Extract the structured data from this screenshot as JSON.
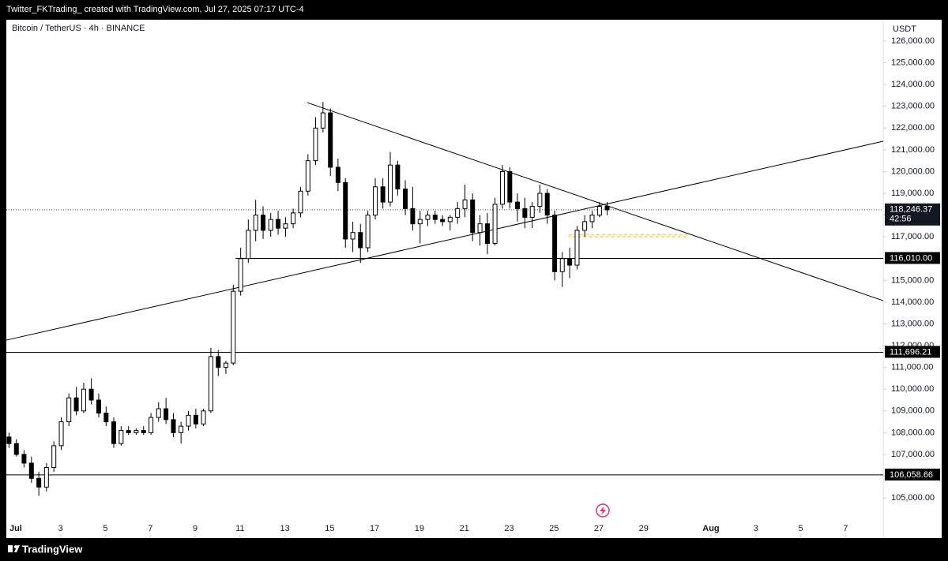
{
  "header": "Twitter_FKTrading_ created with TradingView.com, Jul 27, 2025 07:17 UTC-4",
  "footer": "TradingView",
  "chart_data": {
    "type": "candlestick",
    "title": "Bitcoin / TetherUS · 4h · BINANCE",
    "y_unit": "USDT",
    "x": [
      -0.3,
      0.03,
      0.37,
      0.7,
      1.03,
      1.37,
      1.7,
      2.03,
      2.37,
      2.7,
      3.03,
      3.37,
      3.7,
      4.03,
      4.37,
      4.7,
      5.03,
      5.37,
      5.7,
      6.03,
      6.37,
      6.7,
      7.03,
      7.37,
      7.7,
      8.03,
      8.37,
      8.7,
      9.03,
      9.37,
      9.7,
      10.03,
      10.37,
      10.7,
      11.03,
      11.37,
      11.7,
      12.03,
      12.37,
      12.7,
      13.03,
      13.37,
      13.7,
      14.03,
      14.37,
      14.7,
      15.03,
      15.37,
      15.7,
      16.03,
      16.37,
      16.7,
      17.03,
      17.37,
      17.7,
      18.03,
      18.37,
      18.7,
      19.03,
      19.37,
      19.7,
      20.03,
      20.37,
      20.7,
      21.03,
      21.37,
      21.7,
      22.03,
      22.37,
      22.7,
      23.03,
      23.37,
      23.7,
      24.03,
      24.37,
      24.7,
      25.03,
      25.37,
      25.7,
      26.03,
      26.37
    ],
    "open": [
      107800,
      107500,
      107000,
      106600,
      105900,
      105500,
      106400,
      107400,
      108500,
      109600,
      109000,
      110000,
      109500,
      108900,
      108500,
      107500,
      108100,
      108000,
      108100,
      108000,
      108700,
      109100,
      108600,
      108000,
      108300,
      108800,
      108400,
      109000,
      111500,
      111000,
      111200,
      114500,
      116000,
      117300,
      118000,
      117300,
      117800,
      117400,
      117600,
      118100,
      119100,
      120500,
      122000,
      122700,
      120200,
      119500,
      116900,
      117200,
      116500,
      118000,
      119300,
      118600,
      120300,
      119200,
      118300,
      117600,
      117800,
      118000,
      117800,
      117700,
      117900,
      118300,
      118700,
      117200,
      117600,
      116700,
      118500,
      120000,
      118600,
      118300,
      117900,
      118400,
      119000,
      118000,
      115400,
      116000,
      115700,
      117300,
      117700,
      118000,
      118400
    ],
    "high": [
      108000,
      107700,
      107200,
      106900,
      106200,
      106600,
      107600,
      108700,
      109800,
      110100,
      110300,
      110500,
      109800,
      109200,
      108700,
      108300,
      108300,
      108200,
      108300,
      108900,
      109400,
      109600,
      108900,
      108500,
      109000,
      109100,
      109100,
      111900,
      111800,
      111300,
      114800,
      116500,
      117800,
      118700,
      118400,
      118100,
      118200,
      117900,
      118300,
      119300,
      120800,
      122500,
      123200,
      122900,
      120600,
      119700,
      117700,
      117600,
      118200,
      119700,
      119700,
      120900,
      120500,
      119600,
      119300,
      118200,
      118200,
      118200,
      118000,
      118000,
      118600,
      119400,
      119000,
      118000,
      118100,
      118800,
      120300,
      120200,
      119000,
      118800,
      118600,
      119400,
      119200,
      118200,
      116300,
      116500,
      117500,
      118000,
      118200,
      118600,
      118600
    ],
    "low": [
      107300,
      106900,
      106400,
      105700,
      105100,
      105300,
      106200,
      107200,
      108300,
      108800,
      108900,
      109300,
      108700,
      108300,
      107300,
      107400,
      107900,
      107900,
      107900,
      107900,
      108500,
      108400,
      107800,
      107500,
      108100,
      108200,
      108300,
      108900,
      110600,
      110700,
      111100,
      114300,
      115800,
      116800,
      116900,
      117000,
      117100,
      117000,
      117400,
      117900,
      118900,
      120300,
      121800,
      119800,
      119100,
      116500,
      116300,
      115800,
      116300,
      117800,
      118300,
      118400,
      118900,
      118000,
      117300,
      116700,
      117500,
      117600,
      117500,
      117300,
      117600,
      117900,
      116800,
      116600,
      116200,
      116600,
      118300,
      118300,
      117700,
      117400,
      117400,
      118100,
      117600,
      115000,
      114700,
      115100,
      115500,
      117000,
      117400,
      117900,
      118000
    ],
    "close": [
      107500,
      107000,
      106600,
      105900,
      105500,
      106400,
      107400,
      108500,
      109600,
      109000,
      110000,
      109500,
      108900,
      108500,
      107500,
      108100,
      108000,
      108100,
      108000,
      108700,
      109100,
      108600,
      108000,
      108300,
      108800,
      108400,
      109000,
      111500,
      111000,
      111200,
      114500,
      116000,
      117300,
      118000,
      117300,
      117800,
      117400,
      117600,
      118100,
      119100,
      120500,
      122000,
      122700,
      120200,
      119500,
      116900,
      117200,
      116500,
      118000,
      119300,
      118600,
      120300,
      119200,
      118300,
      117600,
      117800,
      118000,
      117800,
      117700,
      117900,
      118300,
      118700,
      117200,
      117600,
      116700,
      118500,
      120000,
      118600,
      118300,
      117900,
      118400,
      119000,
      118000,
      115400,
      116000,
      115700,
      117300,
      117700,
      118000,
      118400,
      118246.37
    ],
    "up_color": "#ffffff",
    "down_color": "#000000",
    "wick_color": "#000000",
    "xlim": [
      -0.42,
      38.68
    ],
    "xticks": [
      {
        "value": 0,
        "label": "Jul"
      },
      {
        "value": 2,
        "label": "3"
      },
      {
        "value": 4,
        "label": "5"
      },
      {
        "value": 6,
        "label": "7"
      },
      {
        "value": 8,
        "label": "9"
      },
      {
        "value": 10,
        "label": "11"
      },
      {
        "value": 12,
        "label": "13"
      },
      {
        "value": 14,
        "label": "15"
      },
      {
        "value": 16,
        "label": "17"
      },
      {
        "value": 18,
        "label": "19"
      },
      {
        "value": 20,
        "label": "21"
      },
      {
        "value": 22,
        "label": "23"
      },
      {
        "value": 24,
        "label": "25"
      },
      {
        "value": 26,
        "label": "27"
      },
      {
        "value": 28,
        "label": "29"
      },
      {
        "value": 31,
        "label": "Aug"
      },
      {
        "value": 33,
        "label": "3"
      },
      {
        "value": 35,
        "label": "5"
      },
      {
        "value": 37,
        "label": "7"
      }
    ],
    "ylim": [
      103190,
      126980
    ],
    "yticks": [
      {
        "value": 105000,
        "label": "105,000.00"
      },
      {
        "value": 106000,
        "label": "106,000.00"
      },
      {
        "value": 107000,
        "label": "107,000.00"
      },
      {
        "value": 108000,
        "label": "108,000.00"
      },
      {
        "value": 109000,
        "label": "109,000.00"
      },
      {
        "value": 110000,
        "label": "110,000.00"
      },
      {
        "value": 111000,
        "label": "111,000.00"
      },
      {
        "value": 112000,
        "label": "112,000.00"
      },
      {
        "value": 113000,
        "label": "113,000.00"
      },
      {
        "value": 114000,
        "label": "114,000.00"
      },
      {
        "value": 115000,
        "label": "115,000.00"
      },
      {
        "value": 116000,
        "label": "116,000.00"
      },
      {
        "value": 117000,
        "label": "117,000.00"
      },
      {
        "value": 118000,
        "label": "118,000.00"
      },
      {
        "value": 119000,
        "label": "119,000.00"
      },
      {
        "value": 120000,
        "label": "120,000.00"
      },
      {
        "value": 121000,
        "label": "121,000.00"
      },
      {
        "value": 122000,
        "label": "122,000.00"
      },
      {
        "value": 123000,
        "label": "123,000.00"
      },
      {
        "value": 124000,
        "label": "124,000.00"
      },
      {
        "value": 125000,
        "label": "125,000.00"
      },
      {
        "value": 126000,
        "label": "126,000.00"
      }
    ],
    "trendlines": [
      {
        "x": [
          -0.42,
          38.68
        ],
        "y": [
          112254,
          121394
        ]
      },
      {
        "x": [
          13.0,
          38.68
        ],
        "y": [
          123170,
          114067
        ]
      }
    ],
    "levels": [
      {
        "value": 116010,
        "label": "116,010.00",
        "x_start": 9.8
      },
      {
        "value": 111696.21,
        "label": "111,696.21"
      },
      {
        "value": 106058.66,
        "label": "106,058.66"
      }
    ],
    "last_price": {
      "value": 118246.37,
      "label": "118,246.37",
      "countdown": "42:56"
    },
    "zone": {
      "x": [
        24.66,
        29.94
      ],
      "y": [
        117000,
        117110
      ],
      "color": "#f2c94c"
    }
  }
}
